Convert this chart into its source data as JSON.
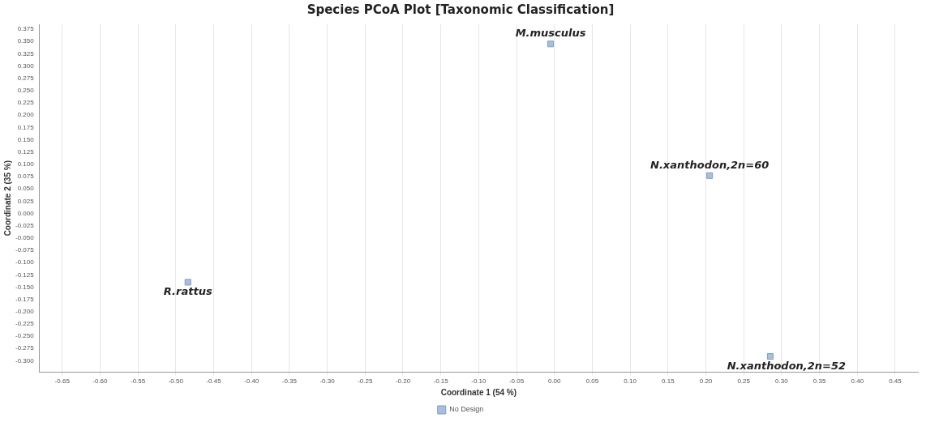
{
  "chart_data": {
    "type": "scatter",
    "title": "Species PCoA Plot [Taxonomic Classification]",
    "xlabel": "Coordinate 1 (54 %)",
    "ylabel": "Coordinate 2 (35 %)",
    "series": [
      {
        "name": "No Design",
        "color": "#a8bfdc",
        "x": [
          -0.005,
          0.205,
          -0.484,
          0.285
        ],
        "values": [
          0.345,
          0.077,
          -0.14,
          -0.291
        ]
      }
    ],
    "annotations": [
      {
        "text": "M.musculus",
        "x": -0.005,
        "y": 0.345
      },
      {
        "text": "N.xanthodon,2n=60",
        "x": 0.205,
        "y": 0.077
      },
      {
        "text": "R.rattus",
        "x": -0.484,
        "y": -0.14
      },
      {
        "text": "N.xanthodon,2n=52",
        "x": 0.285,
        "y": -0.291
      }
    ],
    "xlim": [
      -0.68,
      0.48
    ],
    "ylim": [
      -0.323,
      0.385
    ],
    "xticks": [
      {
        "value": -0.65,
        "label": "-0.65"
      },
      {
        "value": -0.6,
        "label": "-0.60"
      },
      {
        "value": -0.55,
        "label": "-0.55"
      },
      {
        "value": -0.5,
        "label": "-0.50"
      },
      {
        "value": -0.45,
        "label": "-0.45"
      },
      {
        "value": -0.4,
        "label": "-0.40"
      },
      {
        "value": -0.35,
        "label": "-0.35"
      },
      {
        "value": -0.3,
        "label": "-0.30"
      },
      {
        "value": -0.25,
        "label": "-0.25"
      },
      {
        "value": -0.2,
        "label": "-0.20"
      },
      {
        "value": -0.15,
        "label": "-0.15"
      },
      {
        "value": -0.1,
        "label": "-0.10"
      },
      {
        "value": -0.05,
        "label": "-0.05"
      },
      {
        "value": 0,
        "label": "0.00"
      },
      {
        "value": 0.05,
        "label": "0.05"
      },
      {
        "value": 0.1,
        "label": "0.10"
      },
      {
        "value": 0.15,
        "label": "0.15"
      },
      {
        "value": 0.2,
        "label": "0.20"
      },
      {
        "value": 0.25,
        "label": "0.25"
      },
      {
        "value": 0.3,
        "label": "0.30"
      },
      {
        "value": 0.35,
        "label": "0.35"
      },
      {
        "value": 0.4,
        "label": "0.40"
      },
      {
        "value": 0.45,
        "label": "0.45"
      }
    ],
    "yticks": [
      0.375,
      {
        "value": 0.35,
        "label": "0.350"
      },
      0.325,
      {
        "value": 0.3,
        "label": "0.300"
      },
      0.275,
      {
        "value": 0.25,
        "label": "0.250"
      },
      0.225,
      {
        "value": 0.2,
        "label": "0.200"
      },
      0.175,
      {
        "value": 0.15,
        "label": "0.150"
      },
      0.125,
      {
        "value": 0.1,
        "label": "0.100"
      },
      0.075,
      {
        "value": 0.05,
        "label": "0.050"
      },
      0.025,
      {
        "value": 0,
        "label": "0.000"
      },
      -0.025,
      {
        "value": -0.05,
        "label": "-0.050"
      },
      -0.075,
      {
        "value": -0.1,
        "label": "-0.100"
      },
      -0.125,
      {
        "value": -0.15,
        "label": "-0.150"
      },
      -0.175,
      {
        "value": -0.2,
        "label": "-0.200"
      },
      -0.225,
      {
        "value": -0.25,
        "label": "-0.250"
      },
      -0.275,
      {
        "value": -0.3,
        "label": "-0.300"
      }
    ],
    "grid": "x",
    "legend": "bottom",
    "marker": "square"
  }
}
